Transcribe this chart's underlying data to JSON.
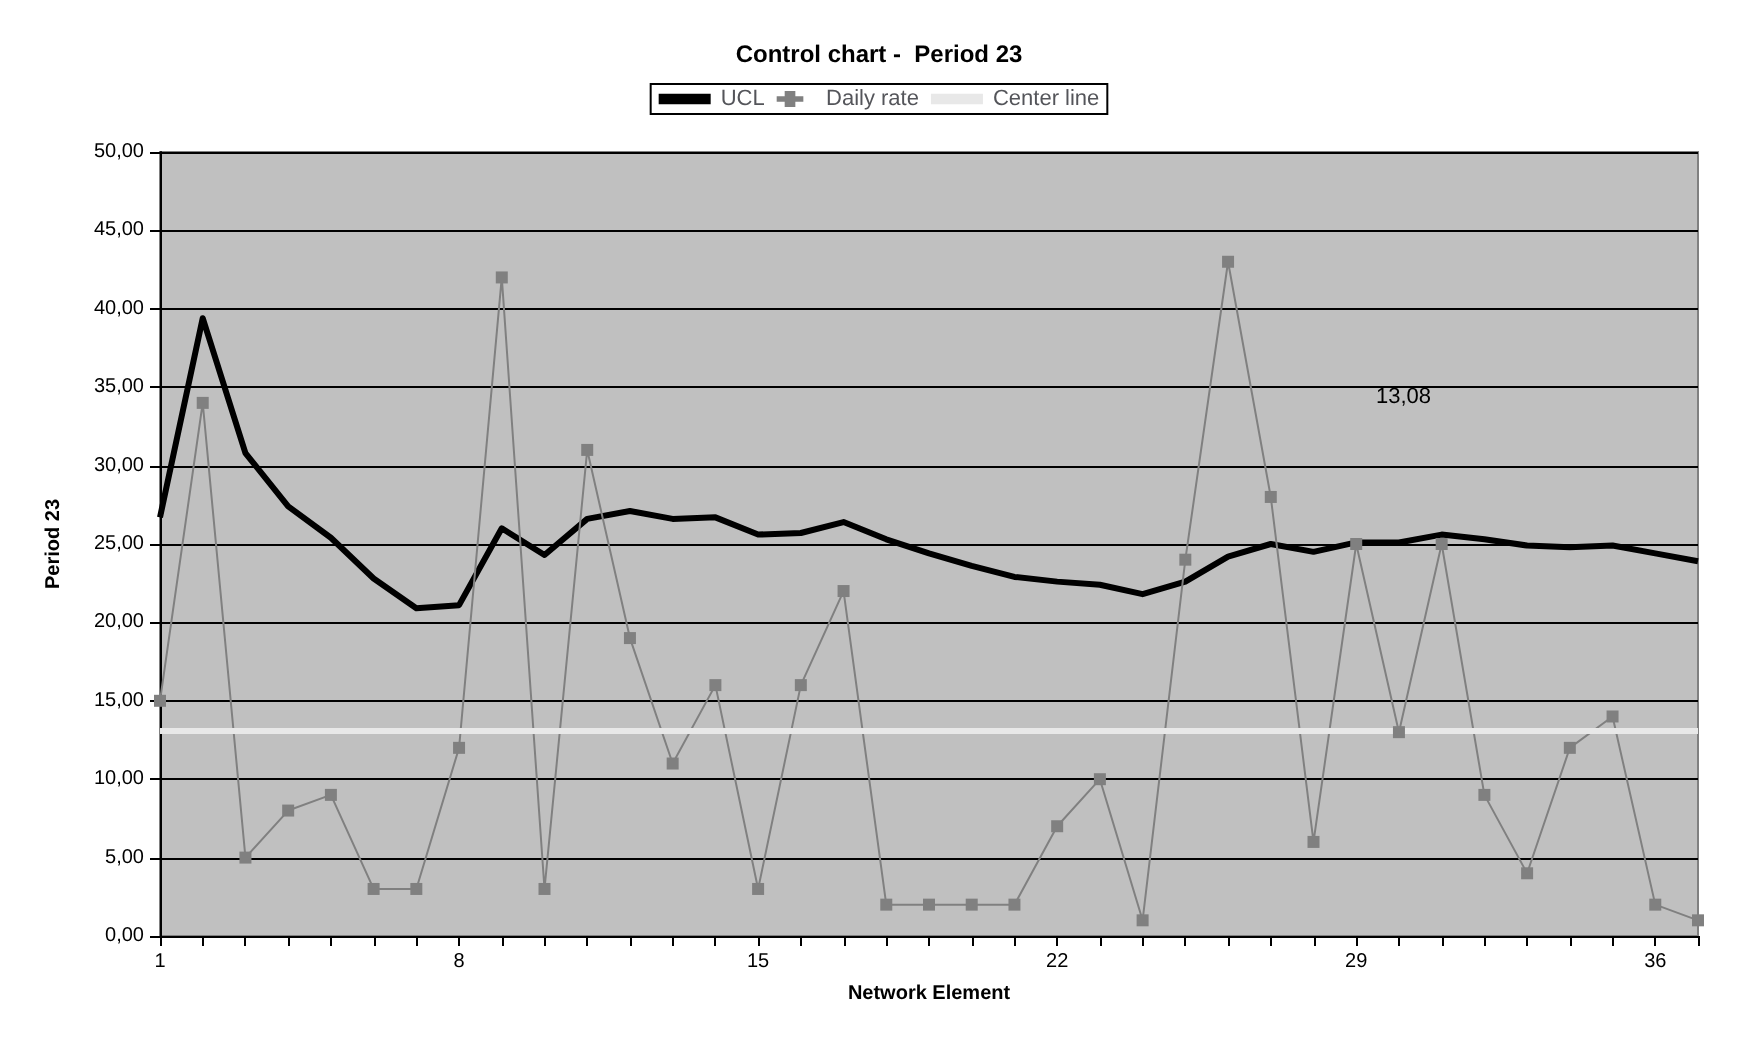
{
  "chart_data": {
    "type": "line",
    "title": "Control chart -  Period 23",
    "xlabel": "Network Element",
    "ylabel": "Period 23",
    "categories": [
      "1",
      null,
      null,
      null,
      null,
      null,
      null,
      "8",
      null,
      null,
      null,
      null,
      null,
      null,
      "15",
      null,
      null,
      null,
      null,
      null,
      null,
      "22",
      null,
      null,
      null,
      null,
      null,
      null,
      "29",
      null,
      null,
      null,
      null,
      null,
      null,
      "36",
      null
    ],
    "series": [
      {
        "name": "UCL",
        "color": "#000000",
        "marker": "none",
        "values": [
          26.7,
          39.4,
          30.8,
          27.4,
          25.4,
          22.8,
          20.9,
          21.1,
          26.0,
          24.3,
          26.6,
          27.1,
          26.6,
          26.7,
          25.6,
          25.7,
          26.4,
          25.3,
          24.4,
          23.6,
          22.9,
          22.6,
          22.4,
          21.8,
          22.6,
          24.2,
          25.0,
          24.5,
          25.1,
          25.1,
          25.6,
          25.3,
          24.9,
          24.8,
          24.9,
          24.4,
          23.9
        ]
      },
      {
        "name": "Daily rate",
        "color": "#808080",
        "marker": "square",
        "values": [
          15,
          34,
          5,
          8,
          9,
          3,
          3,
          12,
          42,
          3,
          31,
          19,
          11,
          16,
          3,
          16,
          22,
          2,
          2,
          2,
          2,
          7,
          10,
          1,
          24,
          43,
          28,
          6,
          25,
          13,
          25,
          9,
          4,
          12,
          14,
          2,
          1
        ]
      },
      {
        "name": "Center line",
        "color": "#e8e8e8",
        "marker": "none",
        "values": [
          13.08,
          13.08,
          13.08,
          13.08,
          13.08,
          13.08,
          13.08,
          13.08,
          13.08,
          13.08,
          13.08,
          13.08,
          13.08,
          13.08,
          13.08,
          13.08,
          13.08,
          13.08,
          13.08,
          13.08,
          13.08,
          13.08,
          13.08,
          13.08,
          13.08,
          13.08,
          13.08,
          13.08,
          13.08,
          13.08,
          13.08,
          13.08,
          13.08,
          13.08,
          13.08,
          13.08,
          13.08
        ]
      }
    ],
    "ylim": [
      0,
      50
    ],
    "yticks": [
      {
        "value": 0,
        "label": "0,00"
      },
      {
        "value": 5,
        "label": "5,00"
      },
      {
        "value": 10,
        "label": "10,00"
      },
      {
        "value": 15,
        "label": "15,00"
      },
      {
        "value": 20,
        "label": "20,00"
      },
      {
        "value": 25,
        "label": "25,00"
      },
      {
        "value": 30,
        "label": "30,00"
      },
      {
        "value": 35,
        "label": "35,00"
      },
      {
        "value": 40,
        "label": "40,00"
      },
      {
        "value": 45,
        "label": "45,00"
      },
      {
        "value": 50,
        "label": "50,00"
      }
    ],
    "grid": "y",
    "legend": "top",
    "annotations": [
      "13,08"
    ]
  }
}
